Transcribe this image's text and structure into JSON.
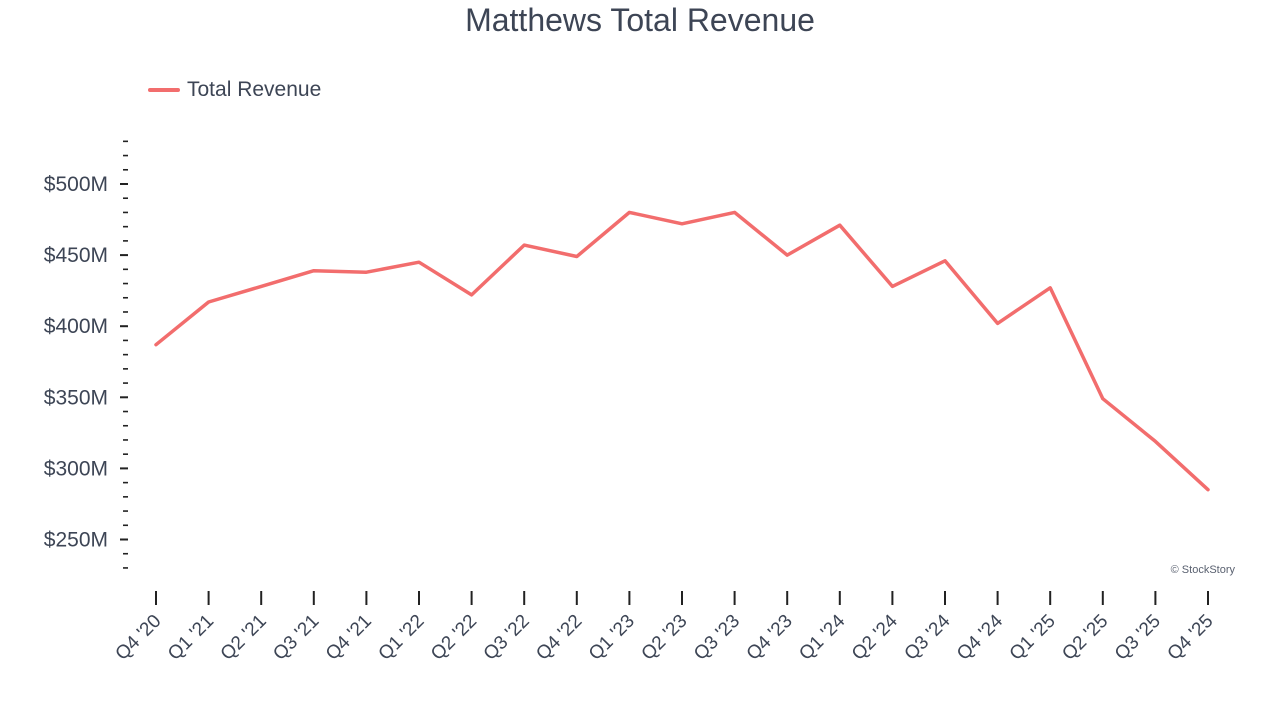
{
  "chart_data": {
    "type": "line",
    "title": "Matthews Total Revenue",
    "xlabel": "",
    "ylabel": "",
    "ylim": [
      220,
      530
    ],
    "yticks": [
      250,
      300,
      350,
      400,
      450,
      500
    ],
    "ytick_labels": [
      "$250M",
      "$300M",
      "$350M",
      "$400M",
      "$450M",
      "$500M"
    ],
    "categories": [
      "Q4 '20",
      "Q1 '21",
      "Q2 '21",
      "Q3 '21",
      "Q4 '21",
      "Q1 '22",
      "Q2 '22",
      "Q3 '22",
      "Q4 '22",
      "Q1 '23",
      "Q2 '23",
      "Q3 '23",
      "Q4 '23",
      "Q1 '24",
      "Q2 '24",
      "Q3 '24",
      "Q4 '24",
      "Q1 '25",
      "Q2 '25",
      "Q3 '25",
      "Q4 '25"
    ],
    "series": [
      {
        "name": "Total Revenue",
        "color": "#f26d6d",
        "values": [
          387,
          417,
          428,
          439,
          438,
          445,
          422,
          457,
          449,
          480,
          472,
          480,
          450,
          471,
          428,
          446,
          402,
          427,
          349,
          319,
          285
        ]
      }
    ],
    "legend_position": "top-left",
    "grid": false
  },
  "watermark": "© StockStory"
}
